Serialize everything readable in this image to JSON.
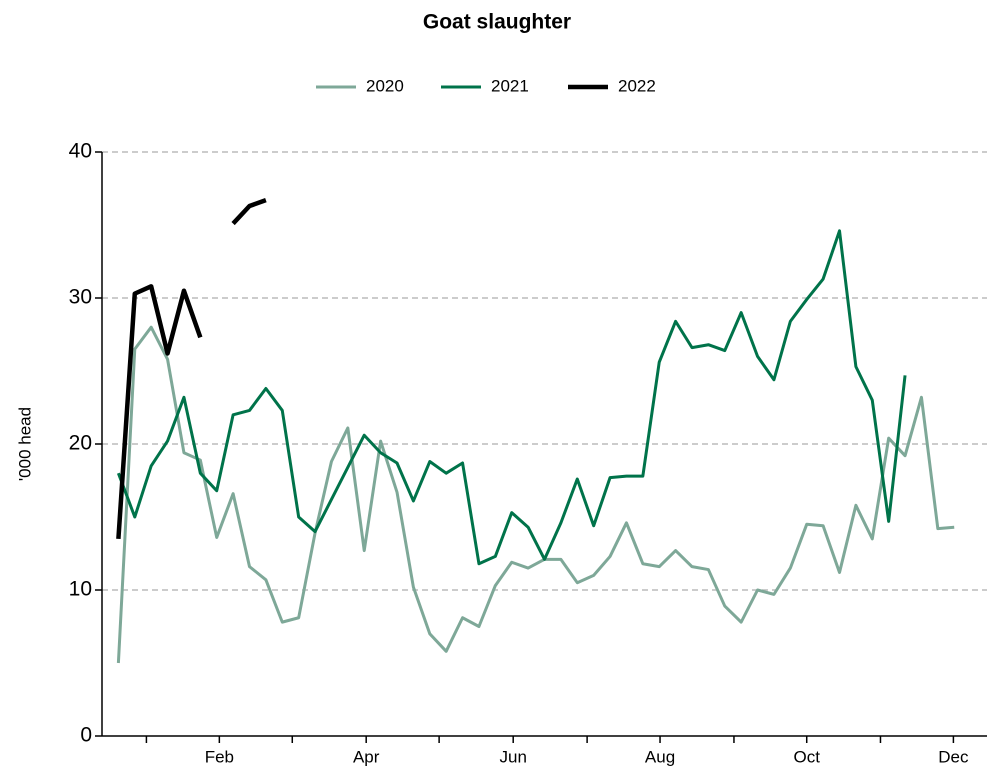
{
  "chart_data": {
    "type": "line",
    "title": "Goat slaughter",
    "y_label": "'000 head",
    "x": [
      1,
      2,
      3,
      4,
      5,
      6,
      7,
      8,
      9,
      10,
      11,
      12,
      13,
      14,
      15,
      16,
      17,
      18,
      19,
      20,
      21,
      22,
      23,
      24,
      25,
      26,
      27,
      28,
      29,
      30,
      31,
      32,
      33,
      34,
      35,
      36,
      37,
      38,
      39,
      40,
      41,
      42,
      43,
      44,
      45,
      46,
      47,
      48,
      49,
      50,
      51,
      52
    ],
    "series": [
      {
        "name": "2020",
        "color": "#7ea898",
        "width": 3,
        "values": [
          5.0,
          26.5,
          28.0,
          25.8,
          19.4,
          18.9,
          13.6,
          16.6,
          11.6,
          10.7,
          7.8,
          8.1,
          13.9,
          18.8,
          21.1,
          12.7,
          20.2,
          16.7,
          10.2,
          7.0,
          5.8,
          8.1,
          7.5,
          10.3,
          11.9,
          11.5,
          12.1,
          12.1,
          10.5,
          11.0,
          12.3,
          14.6,
          11.8,
          11.6,
          12.7,
          11.6,
          11.4,
          8.9,
          7.8,
          10.0,
          9.7,
          11.5,
          14.5,
          14.4,
          11.2,
          15.8,
          13.5,
          20.4,
          19.2,
          23.2,
          14.2,
          14.3
        ]
      },
      {
        "name": "2021",
        "color": "#00734a",
        "width": 3,
        "values": [
          18.0,
          15.0,
          18.5,
          20.2,
          23.2,
          18.0,
          16.8,
          22.0,
          22.3,
          23.8,
          22.3,
          15.0,
          14.0,
          16.2,
          18.4,
          20.6,
          19.4,
          18.7,
          16.1,
          18.8,
          18.0,
          18.7,
          11.8,
          12.3,
          15.3,
          14.3,
          12.1,
          14.6,
          17.6,
          14.4,
          17.7,
          17.8,
          17.8,
          25.6,
          28.4,
          26.6,
          26.8,
          26.4,
          29.0,
          26.0,
          24.4,
          28.4,
          29.9,
          31.3,
          34.6,
          25.3,
          23.0,
          14.7,
          24.7,
          null,
          null,
          null
        ]
      },
      {
        "name": "2022",
        "color": "#000000",
        "width": 4.5,
        "values": [
          13.5,
          30.3,
          30.8,
          26.2,
          30.5,
          27.3,
          null,
          35.1,
          36.3,
          36.7,
          null,
          null,
          null,
          null,
          null,
          null,
          null,
          null,
          null,
          null,
          null,
          null,
          null,
          null,
          null,
          null,
          null,
          null,
          null,
          null,
          null,
          null,
          null,
          null,
          null,
          null,
          null,
          null,
          null,
          null,
          null,
          null,
          null,
          null,
          null,
          null,
          null,
          null,
          null,
          null,
          null,
          null
        ]
      }
    ],
    "xlim": [
      0,
      54
    ],
    "xticks": [
      {
        "value": 7.16,
        "label": "Feb"
      },
      {
        "value": 16.12,
        "label": "Apr"
      },
      {
        "value": 25.09,
        "label": "Jun"
      },
      {
        "value": 34.05,
        "label": "Aug"
      },
      {
        "value": 43.0,
        "label": "Oct"
      },
      {
        "value": 51.95,
        "label": "Dec"
      }
    ],
    "xminorticks": [
      2.71,
      11.61,
      20.57,
      29.6,
      38.56,
      47.5
    ],
    "ylim": [
      0,
      40
    ],
    "yticks": [
      0,
      10,
      20,
      30,
      40
    ],
    "grid": true,
    "legend": "top"
  }
}
